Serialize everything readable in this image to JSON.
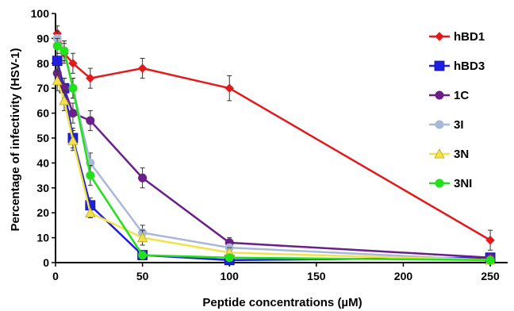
{
  "chart_data": {
    "type": "line",
    "title": "",
    "xlabel": "Peptide concentrations (µM)",
    "ylabel": "Percentage of infectivity (HSV-1)",
    "xlim": [
      0,
      260
    ],
    "ylim": [
      0,
      100
    ],
    "xticks": [
      0,
      50,
      100,
      150,
      200,
      250
    ],
    "yticks": [
      0,
      10,
      20,
      30,
      40,
      50,
      60,
      70,
      80,
      90,
      100
    ],
    "grid": false,
    "legend_position": "right",
    "series": [
      {
        "name": "hBD1",
        "color": "#e31a1c",
        "marker": "diamond",
        "points": [
          [
            1,
            92
          ],
          [
            5,
            84
          ],
          [
            10,
            80
          ],
          [
            20,
            74
          ],
          [
            50,
            78
          ],
          [
            100,
            70
          ],
          [
            250,
            9
          ]
        ],
        "errors": [
          3,
          4,
          4,
          4,
          4,
          5,
          4
        ]
      },
      {
        "name": "hBD3",
        "color": "#1f1fe0",
        "marker": "square",
        "points": [
          [
            1,
            81
          ],
          [
            5,
            70
          ],
          [
            10,
            50
          ],
          [
            20,
            23
          ],
          [
            50,
            3
          ],
          [
            100,
            1
          ],
          [
            250,
            2
          ]
        ],
        "errors": [
          3,
          4,
          4,
          3,
          1,
          1,
          1
        ]
      },
      {
        "name": "1C",
        "color": "#6a1f8a",
        "marker": "circle",
        "points": [
          [
            1,
            76
          ],
          [
            5,
            70
          ],
          [
            10,
            60
          ],
          [
            20,
            57
          ],
          [
            50,
            34
          ],
          [
            100,
            8
          ],
          [
            250,
            2
          ]
        ],
        "errors": [
          3,
          4,
          4,
          4,
          4,
          2,
          1
        ]
      },
      {
        "name": "3I",
        "color": "#a9b8d8",
        "marker": "circle",
        "points": [
          [
            1,
            90
          ],
          [
            5,
            85
          ],
          [
            10,
            70
          ],
          [
            20,
            40
          ],
          [
            50,
            12
          ],
          [
            100,
            6
          ],
          [
            250,
            1
          ]
        ],
        "errors": [
          3,
          4,
          4,
          4,
          3,
          2,
          1
        ]
      },
      {
        "name": "3N",
        "color": "#f2e24a",
        "marker": "triangle",
        "points": [
          [
            1,
            73
          ],
          [
            5,
            65
          ],
          [
            10,
            49
          ],
          [
            20,
            20
          ],
          [
            50,
            10
          ],
          [
            100,
            4
          ],
          [
            250,
            1
          ]
        ],
        "errors": [
          4,
          4,
          4,
          2,
          3,
          2,
          1
        ]
      },
      {
        "name": "3NI",
        "color": "#22e01a",
        "marker": "circle",
        "points": [
          [
            1,
            87
          ],
          [
            5,
            85
          ],
          [
            10,
            70
          ],
          [
            20,
            35
          ],
          [
            50,
            3
          ],
          [
            100,
            2
          ],
          [
            250,
            1
          ]
        ],
        "errors": [
          3,
          4,
          4,
          4,
          1,
          1,
          1
        ]
      }
    ]
  }
}
